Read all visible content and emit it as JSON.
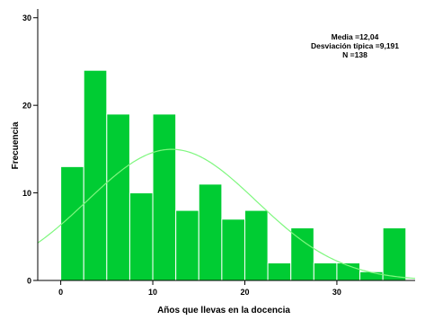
{
  "chart_data": {
    "type": "bar",
    "title": "",
    "xlabel": "Años que llevas en la docencia",
    "ylabel": "Frecuencia",
    "xlim": [
      -2.5,
      38.5
    ],
    "ylim": [
      0,
      31
    ],
    "x_ticks": [
      0,
      10,
      20,
      30
    ],
    "y_ticks": [
      0,
      10,
      20,
      30
    ],
    "bin_width": 2.5,
    "bins_start": [
      0,
      2.5,
      5,
      7.5,
      10,
      12.5,
      15,
      17.5,
      20,
      22.5,
      25,
      27.5,
      30,
      32.5,
      35
    ],
    "values": [
      13,
      24,
      19,
      10,
      19,
      8,
      11,
      7,
      8,
      2,
      6,
      2,
      2,
      1,
      6
    ],
    "normal_curve": {
      "mean": 12.04,
      "sd": 9.191,
      "n": 138
    },
    "stats_box": [
      "Media =12,04",
      "Desviación típica =9,191",
      "N =138"
    ],
    "grid": false,
    "colors": {
      "bar_fill": "#00cc33",
      "bar_stroke": "#ffffff",
      "curve": "#7ff77f",
      "axis": "#000000"
    }
  }
}
